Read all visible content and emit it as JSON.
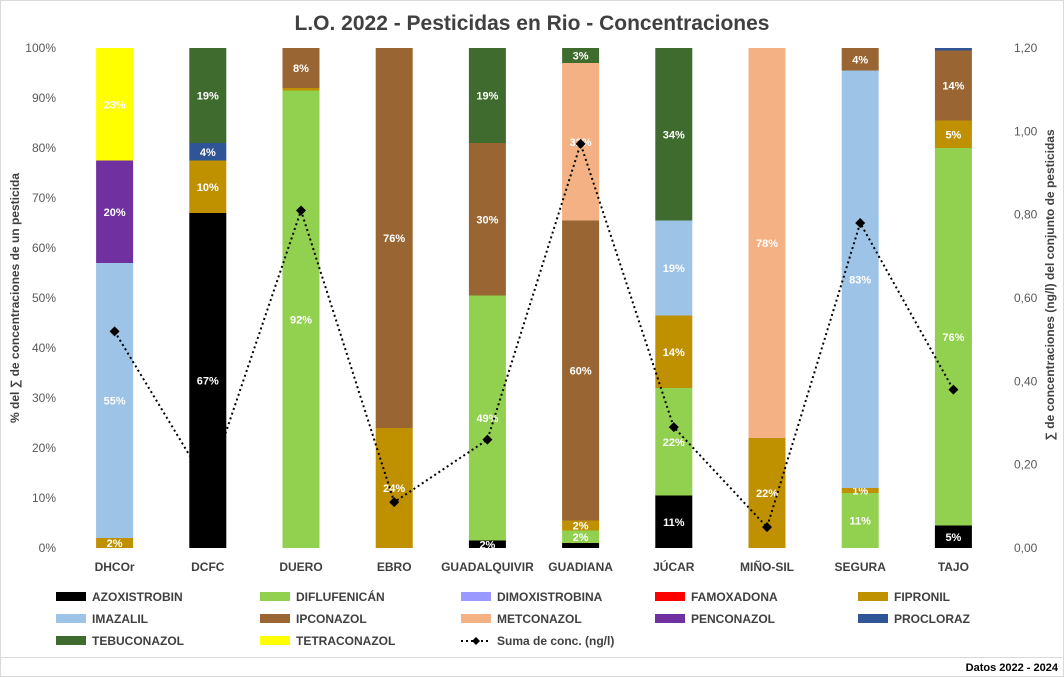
{
  "chart_data": {
    "type": "bar",
    "stacked": true,
    "title": "L.O. 2022 - Pesticidas en Rio - Concentraciones",
    "ylabel": "%  del ∑ de concentraciones de un pesticida",
    "y2label": "∑ de concentraciones (ng/l) del conjunto de pesticidas",
    "ylim": [
      0,
      100
    ],
    "y2lim": [
      0,
      1.2
    ],
    "yticks": [
      "0%",
      "10%",
      "20%",
      "30%",
      "40%",
      "50%",
      "60%",
      "70%",
      "80%",
      "90%",
      "100%"
    ],
    "y2ticks": [
      "0,00",
      "0,20",
      "0,40",
      "0,60",
      "0,80",
      "1,00",
      "1,20"
    ],
    "grid": false,
    "legend_position": "bottom",
    "categories": [
      "DHCOr",
      "DCFC",
      "DUERO",
      "EBRO",
      "GUADALQUIVIR",
      "GUADIANA",
      "JÚCAR",
      "MIÑO-SIL",
      "SEGURA",
      "TAJO"
    ],
    "series": [
      {
        "name": "AZOXISTROBIN",
        "color": "#000000",
        "values": [
          0,
          67,
          0,
          0,
          1.5,
          1,
          10.5,
          0,
          0,
          4.5
        ],
        "labels": [
          "",
          "67%",
          "",
          "",
          "2%",
          "",
          "11%",
          "",
          "",
          "5%"
        ]
      },
      {
        "name": "DIFLUFENICÁN",
        "color": "#92d050",
        "values": [
          0,
          0,
          91.5,
          0,
          49,
          2.5,
          21.5,
          0,
          11,
          75.5
        ],
        "labels": [
          "",
          "",
          "92%",
          "",
          "49%",
          "2%",
          "22%",
          "",
          "11%",
          "76%"
        ]
      },
      {
        "name": "DIMOXISTROBINA",
        "color": "#9999ff",
        "values": [
          0,
          0,
          0,
          0,
          0,
          0,
          0,
          0,
          0,
          0
        ],
        "labels": [
          "",
          "",
          "",
          "",
          "",
          "",
          "",
          "",
          "",
          ""
        ]
      },
      {
        "name": "FAMOXADONA",
        "color": "#ff0000",
        "values": [
          0,
          0,
          0,
          0,
          0,
          0,
          0,
          0,
          0,
          0
        ],
        "labels": [
          "",
          "",
          "",
          "",
          "",
          "",
          "",
          "",
          "",
          ""
        ]
      },
      {
        "name": "FIPRONIL",
        "color": "#bf9000",
        "values": [
          2,
          10.5,
          0.5,
          24,
          0,
          2,
          14.5,
          22,
          1,
          5.5
        ],
        "labels": [
          "2%",
          "10%",
          "",
          "24%",
          "",
          "2%",
          "14%",
          "22%",
          "1%",
          "5%"
        ]
      },
      {
        "name": "IMAZALIL",
        "color": "#9dc3e6",
        "values": [
          55,
          0,
          0,
          0,
          0,
          0,
          19,
          0,
          83.5,
          0
        ],
        "labels": [
          "55%",
          "",
          "",
          "",
          "",
          "",
          "19%",
          "",
          "83%",
          ""
        ]
      },
      {
        "name": "IPCONAZOL",
        "color": "#996633",
        "values": [
          0,
          0,
          8,
          76,
          30.5,
          60,
          0,
          0,
          4.5,
          14
        ],
        "labels": [
          "",
          "",
          "8%",
          "76%",
          "30%",
          "60%",
          "",
          "",
          "4%",
          "14%"
        ]
      },
      {
        "name": "METCONAZOL",
        "color": "#f4b183",
        "values": [
          0,
          0,
          0,
          0,
          0,
          31.5,
          0,
          78,
          0,
          0
        ],
        "labels": [
          "",
          "",
          "",
          "",
          "",
          "32%",
          "",
          "78%",
          "",
          ""
        ]
      },
      {
        "name": "PENCONAZOL",
        "color": "#7030a0",
        "values": [
          20.5,
          0,
          0,
          0,
          0,
          0,
          0,
          0,
          0,
          0
        ],
        "labels": [
          "20%",
          "",
          "",
          "",
          "",
          "",
          "",
          "",
          "",
          ""
        ]
      },
      {
        "name": "PROCLORAZ",
        "color": "#2f5597",
        "values": [
          0,
          3.5,
          0,
          0,
          0,
          0,
          0,
          0,
          0,
          0.5
        ],
        "labels": [
          "",
          "4%",
          "",
          "",
          "",
          "",
          "",
          "",
          "",
          ""
        ]
      },
      {
        "name": "TEBUCONAZOL",
        "color": "#3f6b2e",
        "values": [
          0,
          19,
          0,
          0,
          19,
          3,
          34.5,
          0,
          0,
          0
        ],
        "labels": [
          "",
          "19%",
          "",
          "",
          "19%",
          "3%",
          "34%",
          "",
          "",
          ""
        ]
      },
      {
        "name": "TETRACONAZOL",
        "color": "#ffff00",
        "values": [
          22.5,
          0,
          0,
          0,
          0,
          0,
          0,
          0,
          0,
          0
        ],
        "labels": [
          "23%",
          "",
          "",
          "",
          "",
          "",
          "",
          "",
          "",
          ""
        ]
      }
    ],
    "line_series": {
      "name": "Suma de conc. (ng/l)",
      "color": "#000000",
      "axis": "right",
      "values": [
        0.52,
        0.15,
        0.81,
        0.11,
        0.26,
        0.97,
        0.29,
        0.05,
        0.78,
        0.38
      ]
    }
  },
  "footer": "Datos 2022 - 2024"
}
